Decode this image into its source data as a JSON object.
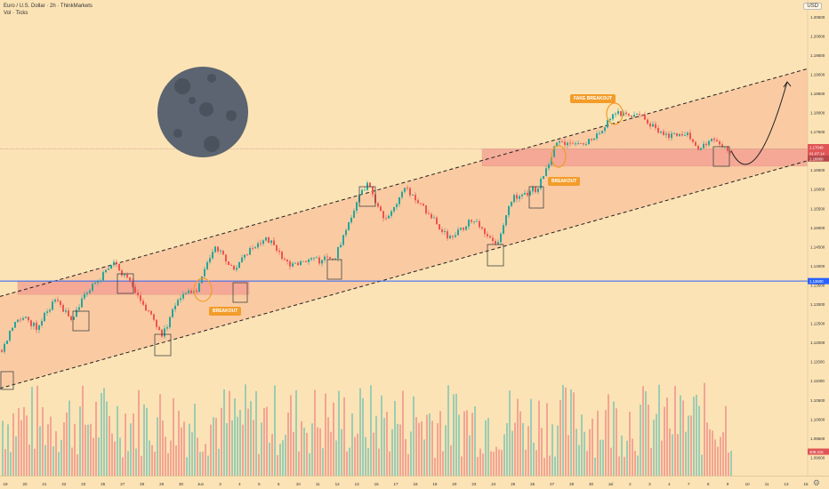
{
  "header": {
    "title": "Euro / U.S. Dollar · 2h · ThinkMarkets",
    "subtitle": "Vol · Ticks",
    "currency": "USD"
  },
  "annotations": {
    "breakout_1": "BREAKOUT",
    "breakout_2": "BREAKOUT",
    "fake_breakout": "FAKE BREAKOUT"
  },
  "price_tags": {
    "current_price": "1.17049",
    "countdown": "01:07:14",
    "zone_level": "1.16800",
    "support_level": "1.13600",
    "volume": "409.21K"
  },
  "colors": {
    "background": "#fbe3b5",
    "channel_fill": "#f9b893",
    "zone_fill": "#f29a90",
    "up_candle": "#26a69a",
    "down_candle": "#ef5350",
    "annotation": "#f39c2a",
    "support_line": "#2962ff",
    "moon": "#5b6470"
  },
  "chart_data": {
    "type": "candlestick",
    "title": "Euro / U.S. Dollar · 2h · ThinkMarkets",
    "ylim": [
      1.085,
      1.2075
    ],
    "y_ticks": [
      "1.20500",
      "1.20000",
      "1.19500",
      "1.19000",
      "1.18500",
      "1.18000",
      "1.17500",
      "1.17000",
      "1.16500",
      "1.16000",
      "1.15500",
      "1.15000",
      "1.14500",
      "1.14000",
      "1.13500",
      "1.13000",
      "1.12500",
      "1.12000",
      "1.11500",
      "1.11000",
      "1.10500",
      "1.10000",
      "1.09500",
      "1.09000"
    ],
    "x_ticks": [
      "19",
      "20",
      "21",
      "22",
      "23",
      "25",
      "27",
      "28",
      "29",
      "30",
      "Jun",
      "3",
      "4",
      "5",
      "6",
      "10",
      "11",
      "12",
      "13",
      "16",
      "17",
      "18",
      "19",
      "20",
      "23",
      "24",
      "25",
      "26",
      "27",
      "29",
      "30",
      "Jul",
      "2",
      "3",
      "4",
      "7",
      "8",
      "9",
      "10",
      "11",
      "13",
      "15"
    ],
    "price_path": [
      [
        0,
        1.118
      ],
      [
        20,
        1.127
      ],
      [
        40,
        1.124
      ],
      [
        60,
        1.131
      ],
      [
        80,
        1.126
      ],
      [
        95,
        1.133
      ],
      [
        110,
        1.136
      ],
      [
        125,
        1.141
      ],
      [
        140,
        1.137
      ],
      [
        160,
        1.13
      ],
      [
        182,
        1.122
      ],
      [
        200,
        1.132
      ],
      [
        220,
        1.134
      ],
      [
        240,
        1.145
      ],
      [
        262,
        1.139
      ],
      [
        280,
        1.144
      ],
      [
        300,
        1.147
      ],
      [
        325,
        1.14
      ],
      [
        345,
        1.141
      ],
      [
        375,
        1.142
      ],
      [
        395,
        1.154
      ],
      [
        412,
        1.162
      ],
      [
        430,
        1.152
      ],
      [
        455,
        1.16
      ],
      [
        480,
        1.154
      ],
      [
        505,
        1.147
      ],
      [
        530,
        1.152
      ],
      [
        558,
        1.146
      ],
      [
        575,
        1.158
      ],
      [
        603,
        1.16
      ],
      [
        625,
        1.172
      ],
      [
        655,
        1.172
      ],
      [
        672,
        1.175
      ],
      [
        692,
        1.18
      ],
      [
        720,
        1.179
      ],
      [
        745,
        1.174
      ],
      [
        770,
        1.175
      ],
      [
        785,
        1.17
      ],
      [
        800,
        1.173
      ],
      [
        820,
        1.17
      ]
    ],
    "projection": [
      [
        822,
        1.17
      ],
      [
        848,
        1.167
      ],
      [
        885,
        1.188
      ]
    ],
    "channel": {
      "upper": [
        [
          0,
          1.132
        ],
        [
          932,
          1.193
        ]
      ],
      "lower": [
        [
          0,
          1.108
        ],
        [
          932,
          1.169
        ]
      ]
    },
    "zones": [
      {
        "x0": 20,
        "x1": 280,
        "y_low": 1.1325,
        "y_high": 1.136
      },
      {
        "x0": 542,
        "x1": 908,
        "y_low": 1.166,
        "y_high": 1.1705
      }
    ],
    "support_line": 1.136,
    "price_line": 1.17049,
    "volume_axis": {
      "label": "409.21K"
    }
  }
}
